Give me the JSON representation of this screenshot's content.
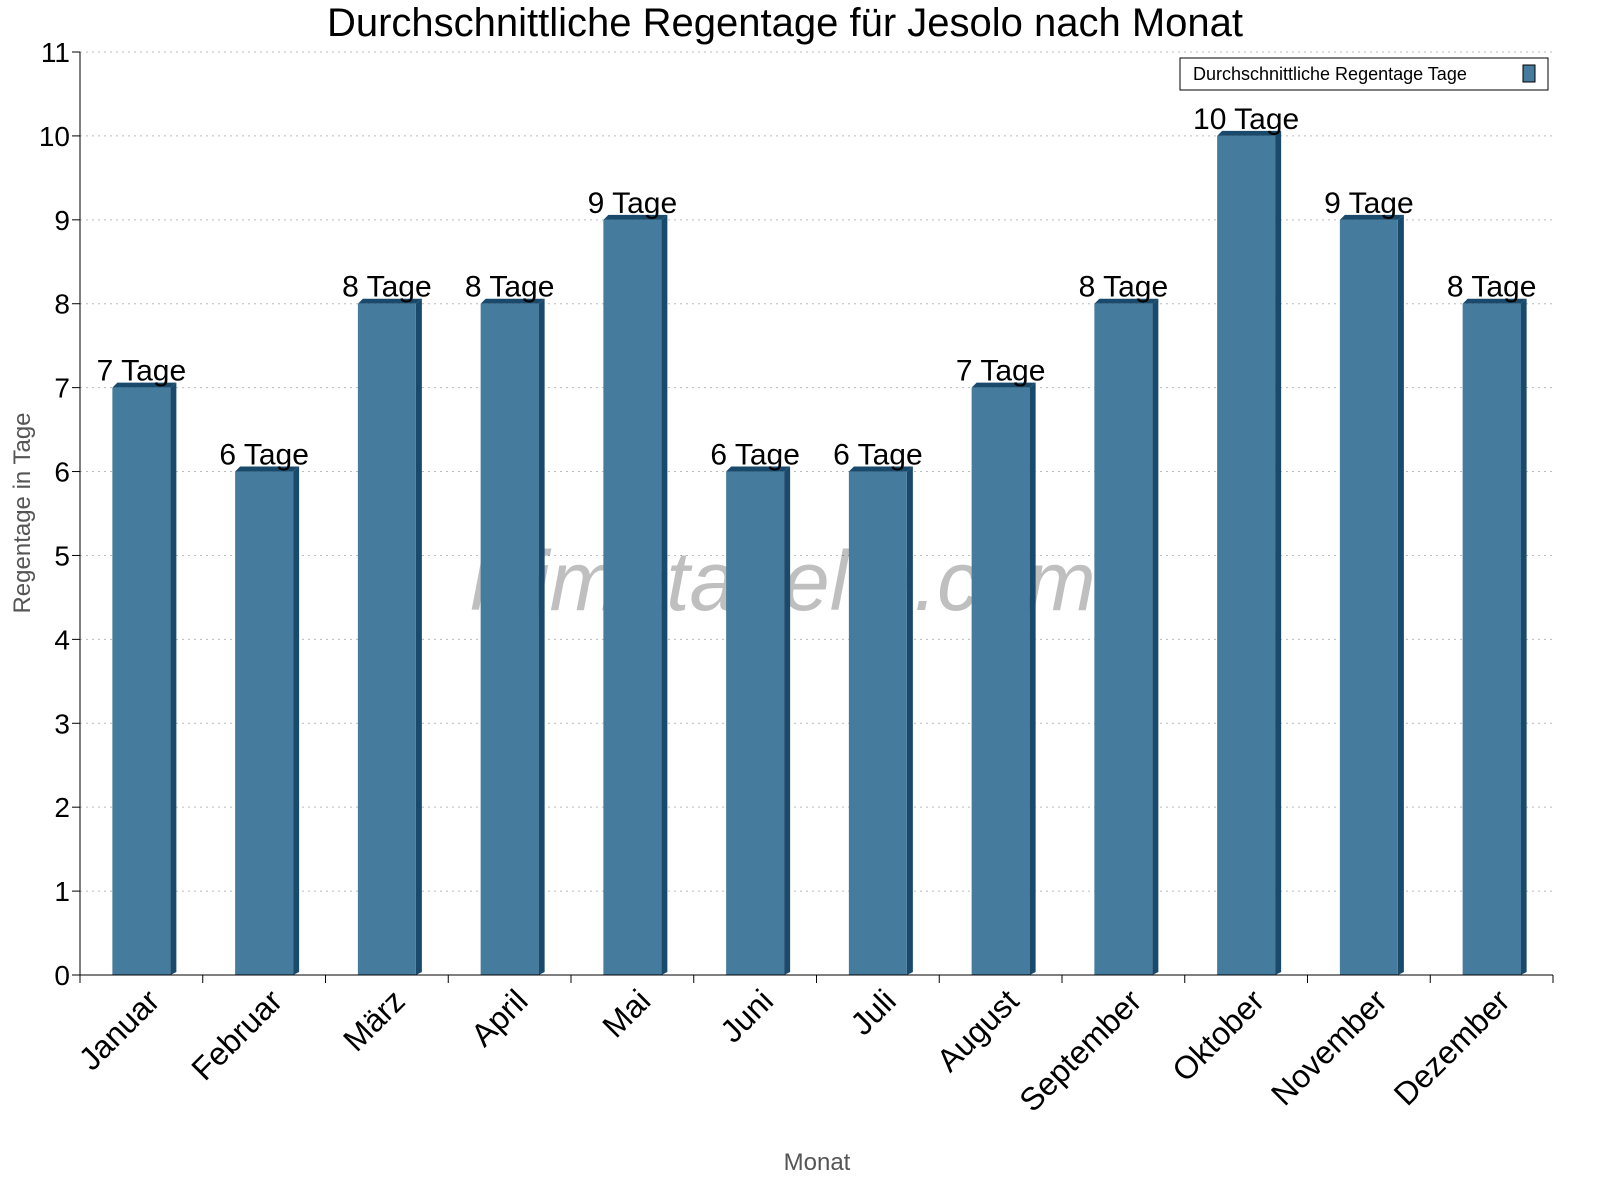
{
  "chart_data": {
    "type": "bar",
    "title": "Durchschnittliche Regentage für Jesolo nach Monat",
    "xlabel": "Monat",
    "ylabel": "Regentage in Tage",
    "categories": [
      "Januar",
      "Februar",
      "März",
      "April",
      "Mai",
      "Juni",
      "Juli",
      "August",
      "September",
      "Oktober",
      "November",
      "Dezember"
    ],
    "series": [
      {
        "name": "Durchschnittliche Regentage Tage",
        "values": [
          7,
          6,
          8,
          8,
          9,
          6,
          6,
          7,
          8,
          10,
          9,
          8
        ]
      }
    ],
    "data_labels": [
      "7 Tage",
      "6 Tage",
      "8 Tage",
      "8 Tage",
      "9 Tage",
      "6 Tage",
      "6 Tage",
      "7 Tage",
      "8 Tage",
      "10 Tage",
      "9 Tage",
      "8 Tage"
    ],
    "ylim": [
      0,
      11
    ],
    "yticks": [
      0,
      1,
      2,
      3,
      4,
      5,
      6,
      7,
      8,
      9,
      10,
      11
    ],
    "grid": true,
    "legend": "top-right",
    "watermark": "klimatabelle.com",
    "colors": {
      "bar": "#457b9d",
      "bar_dark": "#1a4a6b"
    }
  }
}
